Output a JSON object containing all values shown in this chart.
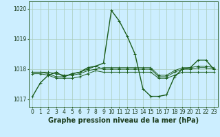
{
  "x": [
    0,
    1,
    2,
    3,
    4,
    5,
    6,
    7,
    8,
    9,
    10,
    11,
    12,
    13,
    14,
    15,
    16,
    17,
    18,
    19,
    20,
    21,
    22,
    23
  ],
  "series": [
    [
      1017.1,
      1017.55,
      1017.8,
      1017.9,
      1017.75,
      1017.85,
      1017.9,
      1018.05,
      1018.1,
      1018.2,
      1019.95,
      1019.6,
      1019.1,
      1018.5,
      1017.35,
      1017.1,
      1017.1,
      1017.15,
      1017.75,
      1018.0,
      1018.05,
      1018.3,
      1018.3,
      1018.0
    ],
    [
      1017.9,
      1017.9,
      1017.85,
      1017.75,
      1017.75,
      1017.85,
      1017.9,
      1018.0,
      1018.1,
      1018.0,
      1018.0,
      1018.0,
      1018.0,
      1018.0,
      1018.0,
      1018.0,
      1017.75,
      1017.75,
      1017.9,
      1018.0,
      1018.0,
      1018.05,
      1018.05,
      1018.0
    ],
    [
      1017.85,
      1017.85,
      1017.8,
      1017.7,
      1017.7,
      1017.7,
      1017.75,
      1017.85,
      1017.95,
      1017.9,
      1017.9,
      1017.9,
      1017.9,
      1017.9,
      1017.9,
      1017.9,
      1017.7,
      1017.7,
      1017.8,
      1017.9,
      1017.9,
      1017.9,
      1017.9,
      1017.9
    ],
    [
      1017.9,
      1017.9,
      1017.9,
      1017.85,
      1017.8,
      1017.8,
      1017.85,
      1017.95,
      1018.0,
      1018.05,
      1018.05,
      1018.05,
      1018.05,
      1018.05,
      1018.05,
      1018.05,
      1017.8,
      1017.8,
      1017.95,
      1018.05,
      1018.05,
      1018.1,
      1018.1,
      1018.05
    ]
  ],
  "bg_color": "#cceeff",
  "grid_color": "#aaccbb",
  "line_color": "#1a5c1a",
  "xlabel": "Graphe pression niveau de la mer (hPa)",
  "ylim": [
    1016.75,
    1020.25
  ],
  "xlim": [
    -0.5,
    23.5
  ],
  "yticks": [
    1017,
    1018,
    1019,
    1020
  ],
  "xticks": [
    0,
    1,
    2,
    3,
    4,
    5,
    6,
    7,
    8,
    9,
    10,
    11,
    12,
    13,
    14,
    15,
    16,
    17,
    18,
    19,
    20,
    21,
    22,
    23
  ],
  "tick_fontsize": 5.5,
  "xlabel_fontsize": 7.0,
  "marker": "+",
  "marker_size": 3,
  "marker_edge_width": 0.7
}
